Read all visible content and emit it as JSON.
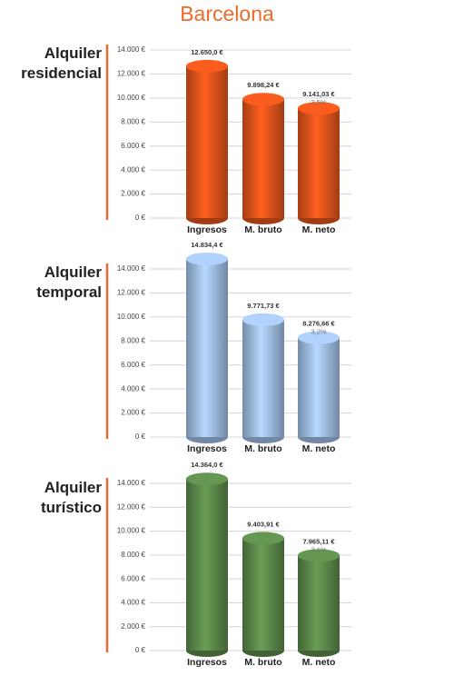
{
  "title": "Barcelona",
  "chart_data": [
    {
      "type": "bar",
      "title": "Alquiler residencial",
      "color": "#e8561c",
      "categories": [
        "Ingresos",
        "M. bruto",
        "M. neto"
      ],
      "values": [
        12650.0,
        9898.24,
        9141.03
      ],
      "value_labels": [
        "12.650,0 €",
        "9.898,24 €",
        "9.141,03 €"
      ],
      "annotation": "3,5%",
      "ylim": [
        0,
        14000
      ],
      "grid": true,
      "yticks": [
        {
          "value": 0,
          "label": "0 €"
        },
        {
          "value": 2000,
          "label": "2.000 €"
        },
        {
          "value": 4000,
          "label": "4.000 €"
        },
        {
          "value": 6000,
          "label": "6.000 €"
        },
        {
          "value": 8000,
          "label": "8.000 €"
        },
        {
          "value": 10000,
          "label": "10.000 €"
        },
        {
          "value": 12000,
          "label": "12.000 €"
        },
        {
          "value": 14000,
          "label": "14.000 €"
        }
      ]
    },
    {
      "type": "bar",
      "title": "Alquiler temporal",
      "color": "#a3c2ea",
      "categories": [
        "Ingresos",
        "M. bruto",
        "M. neto"
      ],
      "values": [
        14834.4,
        9771.73,
        8276.66
      ],
      "value_labels": [
        "14.834,4 €",
        "9.771,73 €",
        "8.276,66 €"
      ],
      "annotation": "3,2%",
      "ylim": [
        0,
        14000
      ],
      "grid": true,
      "yticks": [
        {
          "value": 0,
          "label": "0 €"
        },
        {
          "value": 2000,
          "label": "2.000 €"
        },
        {
          "value": 4000,
          "label": "4.000 €"
        },
        {
          "value": 6000,
          "label": "6.000 €"
        },
        {
          "value": 8000,
          "label": "8.000 €"
        },
        {
          "value": 10000,
          "label": "10.000 €"
        },
        {
          "value": 12000,
          "label": "12.000 €"
        },
        {
          "value": 14000,
          "label": "14.000 €"
        }
      ]
    },
    {
      "type": "bar",
      "title": "Alquiler turístico",
      "color": "#5e8c4c",
      "categories": [
        "Ingresos",
        "M. bruto",
        "M. neto"
      ],
      "values": [
        14364.0,
        9403.91,
        7965.11
      ],
      "value_labels": [
        "14.364,0 €",
        "9.403,91 €",
        "7.965,11 €"
      ],
      "annotation": "3,1%",
      "ylim": [
        0,
        14000
      ],
      "grid": true,
      "yticks": [
        {
          "value": 0,
          "label": "0 €"
        },
        {
          "value": 2000,
          "label": "2.000 €"
        },
        {
          "value": 4000,
          "label": "4.000 €"
        },
        {
          "value": 6000,
          "label": "6.000 €"
        },
        {
          "value": 8000,
          "label": "8.000 €"
        },
        {
          "value": 10000,
          "label": "10.000 €"
        },
        {
          "value": 12000,
          "label": "12.000 €"
        },
        {
          "value": 14000,
          "label": "14.000 €"
        }
      ]
    }
  ]
}
